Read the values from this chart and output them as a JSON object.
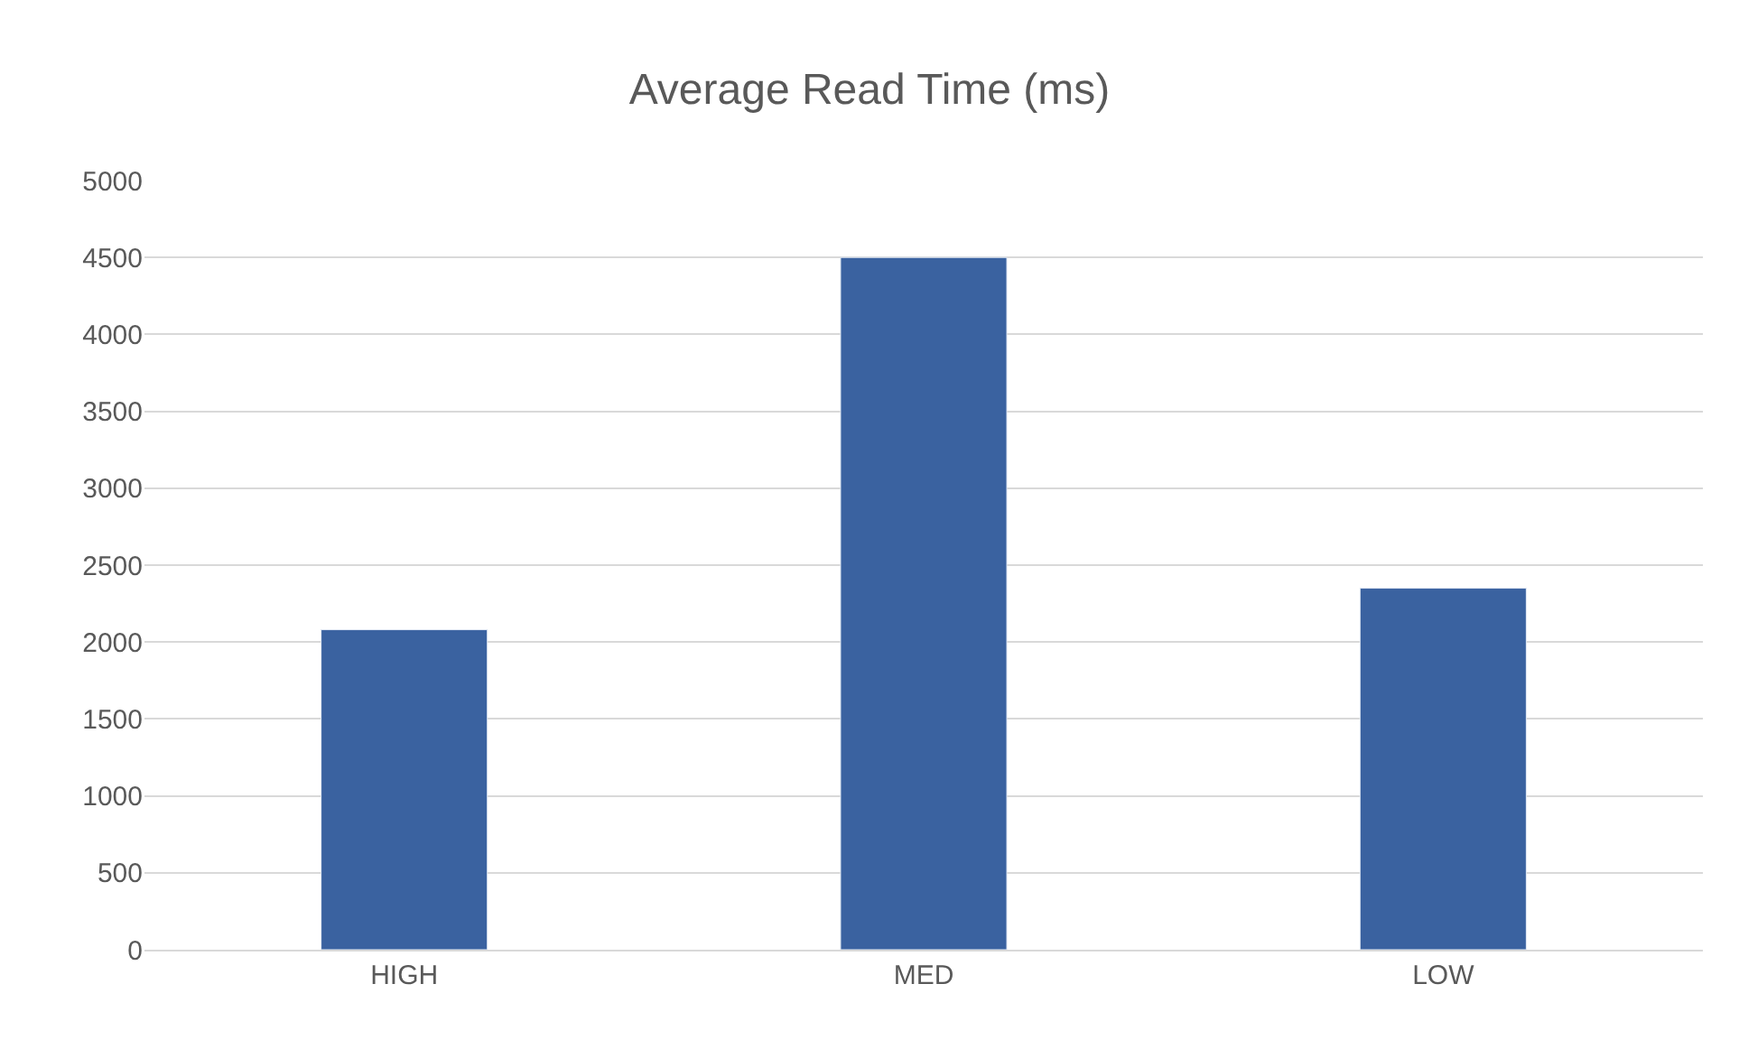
{
  "chart_data": {
    "type": "bar",
    "title": "Average Read Time (ms)",
    "categories": [
      "HIGH",
      "MED",
      "LOW"
    ],
    "values": [
      2080,
      4500,
      2350
    ],
    "color": "#3a62a0",
    "ylim": [
      0,
      5000
    ],
    "yticks": [
      0,
      500,
      1000,
      1500,
      2000,
      2500,
      3000,
      3500,
      4000,
      4500,
      5000
    ],
    "grid": "y"
  }
}
